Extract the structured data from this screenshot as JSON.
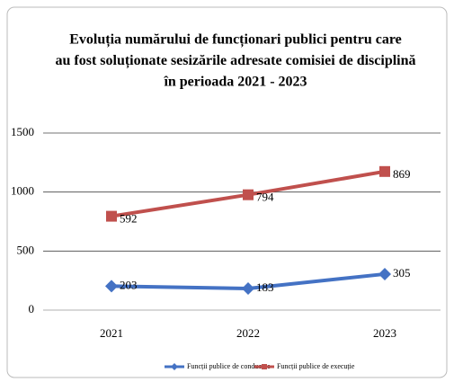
{
  "chart_data": {
    "type": "line",
    "stacked": true,
    "title": [
      "Evoluția numărului de funcționari publici pentru care",
      "au fost soluționate sesizările adresate comisiei de disciplină",
      "în perioada 2021 - 2023"
    ],
    "categories": [
      "2021",
      "2022",
      "2023"
    ],
    "series": [
      {
        "name": "Funcții publice de conducere",
        "color": "#4472c4",
        "marker": "diamond",
        "values": [
          203,
          183,
          305
        ]
      },
      {
        "name": "Funcții publice de execuție",
        "color": "#c0504d",
        "marker": "square",
        "values": [
          592,
          794,
          869
        ]
      }
    ],
    "ylim": [
      0,
      1500
    ],
    "yticks": [
      0,
      500,
      1000,
      1500
    ],
    "grid": true,
    "legend": "bottom"
  }
}
